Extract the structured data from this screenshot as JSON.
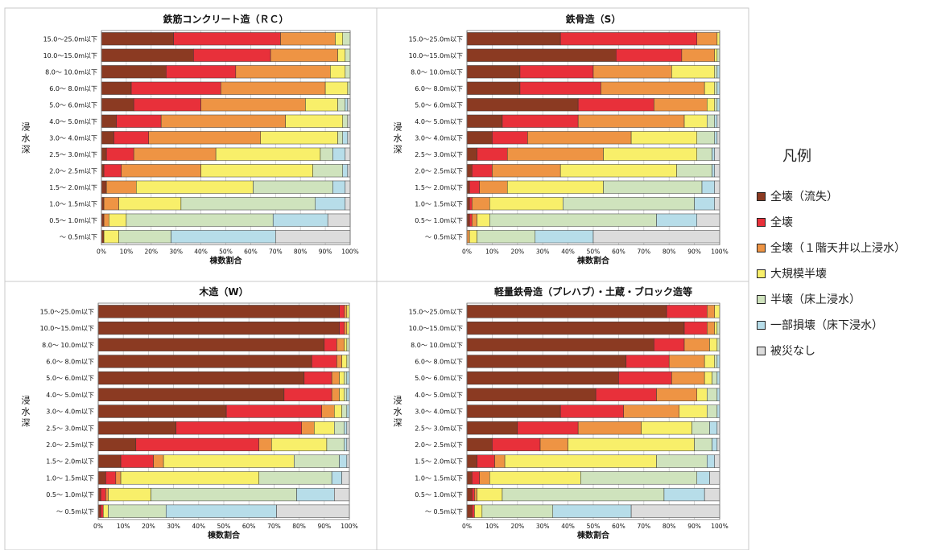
{
  "colors": [
    "#8b3a22",
    "#e8303a",
    "#ee9444",
    "#f8ef6a",
    "#cfe3bd",
    "#b7dde9",
    "#dcdcdc"
  ],
  "legend": {
    "title": "凡例",
    "items": [
      "全壊（流失）",
      "全壊",
      "全壊（１階天井以上浸水）",
      "大規模半壊",
      "半壊（床上浸水）",
      "一部損壊（床下浸水）",
      "被災なし"
    ]
  },
  "chart_data": [
    {
      "type": "bar",
      "orientation": "horizontal",
      "stacked": true,
      "title": "鉄筋コンクリート造（ＲＣ）",
      "xlabel": "棟数割合",
      "ylabel": "浸水深",
      "xticks": [
        "0%",
        "10%",
        "20%",
        "30%",
        "40%",
        "50%",
        "60%",
        "70%",
        "80%",
        "90%",
        "100%"
      ],
      "categories": [
        "15.0～25.0m以下",
        "10.0～15.0m以下",
        "8.0～ 10.0m以下",
        "6.0～ 8.0m以下",
        "5.0～ 6.0m以下",
        "4.0～ 5.0m以下",
        "3.0～ 4.0m以下",
        "2.5～ 3.0m以下",
        "2.0～ 2.5m以下",
        "1.5～ 2.0m以下",
        "1.0～ 1.5m以下",
        "0.5～ 1.0m以下",
        "～ 0.5m以下"
      ],
      "rows": [
        [
          29,
          43,
          22,
          3,
          3,
          0,
          0
        ],
        [
          37,
          31,
          27,
          3,
          2,
          0,
          0
        ],
        [
          26,
          28,
          38,
          6,
          2,
          0,
          0
        ],
        [
          12,
          36,
          42,
          9,
          1,
          0,
          0
        ],
        [
          13,
          27,
          42,
          13,
          3,
          1,
          1
        ],
        [
          6,
          18,
          50,
          23,
          2,
          0,
          1
        ],
        [
          5,
          14,
          45,
          31,
          2,
          2,
          1
        ],
        [
          2,
          11,
          33,
          42,
          5,
          5,
          2
        ],
        [
          1,
          7,
          32,
          45,
          12,
          2,
          1
        ],
        [
          2,
          0,
          12,
          47,
          32,
          5,
          2
        ],
        [
          1,
          0,
          6,
          25,
          54,
          12,
          2
        ],
        [
          1,
          0,
          2,
          7,
          59,
          22,
          9
        ],
        [
          1,
          0,
          0,
          6,
          21,
          42,
          30
        ]
      ]
    },
    {
      "type": "bar",
      "orientation": "horizontal",
      "stacked": true,
      "title": "鉄骨造（S）",
      "xlabel": "棟数割合",
      "ylabel": "浸水深",
      "xticks": [
        "0%",
        "10%",
        "20%",
        "30%",
        "40%",
        "50%",
        "60%",
        "70%",
        "80%",
        "90%",
        "100%"
      ],
      "categories": [
        "15.0～25.0m以下",
        "10.0～15.0m以下",
        "8.0～ 10.0m以下",
        "6.0～ 8.0m以下",
        "5.0～ 6.0m以下",
        "4.0～ 5.0m以下",
        "3.0～ 4.0m以下",
        "2.5～ 3.0m以下",
        "2.0～ 2.5m以下",
        "1.5～ 2.0m以下",
        "1.0～ 1.5m以下",
        "0.5～ 1.0m以下",
        "～ 0.5m以下"
      ],
      "rows": [
        [
          37,
          54,
          8,
          1,
          0,
          0,
          0
        ],
        [
          59,
          26,
          13,
          1,
          1,
          0,
          0
        ],
        [
          21,
          29,
          31,
          17,
          1,
          1,
          0
        ],
        [
          21,
          32,
          41,
          4,
          1,
          1,
          0
        ],
        [
          44,
          30,
          21,
          3,
          1,
          1,
          0
        ],
        [
          14,
          30,
          42,
          9,
          3,
          1,
          1
        ],
        [
          10,
          14,
          41,
          26,
          7,
          1,
          1
        ],
        [
          4,
          12,
          38,
          37,
          6,
          1,
          2
        ],
        [
          2,
          8,
          27,
          46,
          14,
          1,
          2
        ],
        [
          1,
          4,
          11,
          38,
          39,
          5,
          2
        ],
        [
          1,
          1,
          7,
          29,
          52,
          8,
          2
        ],
        [
          1,
          1,
          2,
          5,
          66,
          16,
          9
        ],
        [
          0,
          0,
          1,
          3,
          23,
          23,
          50
        ]
      ]
    },
    {
      "type": "bar",
      "orientation": "horizontal",
      "stacked": true,
      "title": "木造（W）",
      "xlabel": "棟数割合",
      "ylabel": "浸水深",
      "xticks": [
        "0%",
        "10%",
        "20%",
        "30%",
        "40%",
        "50%",
        "60%",
        "70%",
        "80%",
        "90%",
        "100%"
      ],
      "categories": [
        "15.0～25.0m以下",
        "10.0～15.0m以下",
        "8.0～ 10.0m以下",
        "6.0～ 8.0m以下",
        "5.0～ 6.0m以下",
        "4.0～ 5.0m以下",
        "3.0～ 4.0m以下",
        "2.5～ 3.0m以下",
        "2.0～ 2.5m以下",
        "1.5～ 2.0m以下",
        "1.0～ 1.5m以下",
        "0.5～ 1.0m以下",
        "～ 0.5m以下"
      ],
      "rows": [
        [
          96,
          2,
          1,
          1,
          0,
          0,
          0
        ],
        [
          96,
          2,
          1,
          1,
          0,
          0,
          0
        ],
        [
          90,
          5,
          3,
          1,
          1,
          0,
          0
        ],
        [
          85,
          10,
          2,
          2,
          1,
          0,
          0
        ],
        [
          82,
          11,
          3,
          2,
          1,
          1,
          0
        ],
        [
          74,
          19,
          3,
          2,
          1,
          1,
          0
        ],
        [
          51,
          38,
          5,
          3,
          2,
          1,
          0
        ],
        [
          31,
          50,
          5,
          8,
          4,
          1,
          1
        ],
        [
          15,
          49,
          5,
          22,
          7,
          1,
          1
        ],
        [
          9,
          13,
          4,
          52,
          18,
          3,
          1
        ],
        [
          3,
          4,
          2,
          55,
          29,
          4,
          3
        ],
        [
          1,
          2,
          1,
          17,
          58,
          15,
          6
        ],
        [
          1,
          1,
          0,
          2,
          23,
          44,
          29
        ]
      ]
    },
    {
      "type": "bar",
      "orientation": "horizontal",
      "stacked": true,
      "title": "軽量鉄骨造（プレハブ）・土蔵・ブロック造等",
      "xlabel": "棟数割合",
      "ylabel": "浸水深",
      "xticks": [
        "0%",
        "10%",
        "20%",
        "30%",
        "40%",
        "50%",
        "60%",
        "70%",
        "80%",
        "90%",
        "100%"
      ],
      "categories": [
        "15.0～25.0m以下",
        "10.0～15.0m以下",
        "8.0～ 10.0m以下",
        "6.0～ 8.0m以下",
        "5.0～ 6.0m以下",
        "4.0～ 5.0m以下",
        "3.0～ 4.0m以下",
        "2.5～ 3.0m以下",
        "2.0～ 2.5m以下",
        "1.5～ 2.0m以下",
        "1.0～ 1.5m以下",
        "0.5～ 1.0m以下",
        "～ 0.5m以下"
      ],
      "rows": [
        [
          79,
          16,
          3,
          2,
          0,
          0,
          0
        ],
        [
          86,
          9,
          3,
          1,
          1,
          0,
          0
        ],
        [
          74,
          12,
          10,
          3,
          1,
          0,
          0
        ],
        [
          63,
          17,
          14,
          4,
          1,
          1,
          0
        ],
        [
          60,
          21,
          13,
          3,
          2,
          1,
          0
        ],
        [
          51,
          24,
          16,
          4,
          4,
          1,
          0
        ],
        [
          37,
          25,
          22,
          11,
          4,
          1,
          0
        ],
        [
          20,
          24,
          25,
          20,
          7,
          3,
          1
        ],
        [
          10,
          19,
          11,
          50,
          7,
          2,
          1
        ],
        [
          4,
          7,
          4,
          60,
          20,
          3,
          2
        ],
        [
          2,
          3,
          4,
          36,
          46,
          5,
          4
        ],
        [
          2,
          1,
          1,
          10,
          64,
          16,
          6
        ],
        [
          2,
          1,
          0,
          3,
          28,
          31,
          35
        ]
      ]
    }
  ]
}
